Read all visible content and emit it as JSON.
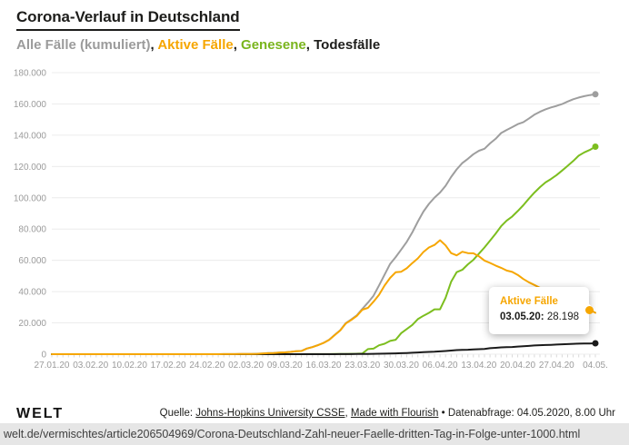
{
  "chart_data": {
    "type": "line",
    "title": "Corona-Verlauf in Deutschland",
    "legend_position": "subtitle",
    "legend_segments": [
      {
        "name": "alle-faelle",
        "text": "Alle Fälle (kumuliert)",
        "color": "#9b9b9b"
      },
      {
        "name": "sep1",
        "text": ", ",
        "color": "#1d1d1b"
      },
      {
        "name": "aktive-faelle",
        "text": "Aktive Fälle",
        "color": "#f6a600"
      },
      {
        "name": "sep2",
        "text": ", ",
        "color": "#1d1d1b"
      },
      {
        "name": "genesene",
        "text": "Genesene",
        "color": "#7ab51d"
      },
      {
        "name": "sep3",
        "text": ", ",
        "color": "#1d1d1b"
      },
      {
        "name": "todesfaelle",
        "text": "Todesfälle",
        "color": "#1d1d1b"
      }
    ],
    "x": {
      "start": "27.01.20",
      "end": "04.05.20",
      "interval": "daily"
    },
    "points": 99,
    "x_tick_labels": [
      "27.01.20",
      "03.02.20",
      "10.02.20",
      "17.02.20",
      "24.02.20",
      "02.03.20",
      "09.03.20",
      "16.03.20",
      "23.03.20",
      "30.03.20",
      "06.04.20",
      "13.04.20",
      "20.04.20",
      "27.04.20",
      "04.05."
    ],
    "x_tick_every_days": 7,
    "y_tick_labels": [
      "0",
      "20.000",
      "40.000",
      "60.000",
      "80.000",
      "100.000",
      "120.000",
      "140.000",
      "160.000",
      "180.000"
    ],
    "y_max": 180000,
    "grid": "horizontal",
    "draw_order": [
      0,
      2,
      3,
      1
    ],
    "series": [
      {
        "name": "Alle Fälle (kumuliert)",
        "color": "#9e9e9e",
        "end_dot_index": 98,
        "values": [
          1,
          4,
          4,
          4,
          5,
          8,
          10,
          12,
          12,
          12,
          12,
          13,
          13,
          14,
          14,
          16,
          16,
          16,
          16,
          16,
          16,
          16,
          16,
          16,
          16,
          16,
          16,
          16,
          16,
          17,
          27,
          46,
          48,
          79,
          130,
          159,
          196,
          262,
          482,
          670,
          799,
          1040,
          1176,
          1457,
          1908,
          2078,
          3675,
          4585,
          5795,
          7272,
          9257,
          12327,
          15320,
          19848,
          22213,
          24873,
          29056,
          32986,
          37323,
          43938,
          50871,
          57695,
          62095,
          66885,
          71808,
          77872,
          84794,
          91159,
          96092,
          100123,
          103374,
          107663,
          113296,
          118181,
          122171,
          124908,
          127854,
          130072,
          131359,
          134753,
          137698,
          141397,
          143342,
          145184,
          147065,
          148291,
          150648,
          153129,
          154999,
          156513,
          157770,
          158758,
          159912,
          161539,
          163009,
          164077,
          164967,
          165664,
          166152
        ]
      },
      {
        "name": "Aktive Fälle",
        "color": "#f6a600",
        "end_dot_index": 97,
        "overlay_dot": true,
        "values": [
          1,
          4,
          4,
          4,
          5,
          8,
          10,
          12,
          12,
          12,
          11,
          12,
          12,
          13,
          13,
          15,
          15,
          4,
          4,
          4,
          4,
          4,
          2,
          2,
          2,
          2,
          0,
          0,
          0,
          1,
          11,
          30,
          32,
          63,
          114,
          143,
          180,
          246,
          466,
          654,
          783,
          1022,
          1156,
          1430,
          1880,
          2050,
          3622,
          4530,
          5738,
          7188,
          9148,
          12194,
          15161,
          19601,
          21896,
          24513,
          28480,
          29586,
          33570,
          37998,
          43871,
          48781,
          52351,
          52740,
          54933,
          58252,
          61247,
          65309,
          68248,
          69839,
          72864,
          69566,
          64647,
          63167,
          65491,
          64637,
          64532,
          62578,
          59865,
          58349,
          56646,
          55245,
          53483,
          52598,
          50703,
          48058,
          45969,
          44254,
          42439,
          40836,
          39794,
          38132,
          36198,
          34672,
          32886,
          30441,
          29155,
          28198,
          26459
        ]
      },
      {
        "name": "Genesene",
        "color": "#7cbe1f",
        "end_dot_index": 98,
        "values": [
          0,
          0,
          0,
          0,
          0,
          0,
          0,
          0,
          0,
          0,
          1,
          1,
          1,
          1,
          1,
          1,
          1,
          12,
          12,
          12,
          12,
          12,
          14,
          14,
          14,
          14,
          16,
          16,
          16,
          16,
          16,
          16,
          16,
          16,
          16,
          16,
          16,
          16,
          16,
          16,
          16,
          18,
          18,
          25,
          25,
          25,
          46,
          46,
          46,
          67,
          85,
          105,
          115,
          180,
          233,
          266,
          453,
          3243,
          3547,
          5673,
          6658,
          8481,
          9211,
          13500,
          16100,
          18700,
          22440,
          24575,
          26400,
          28700,
          28700,
          36081,
          46300,
          52407,
          53913,
          57400,
          60300,
          64300,
          68200,
          72600,
          77000,
          81800,
          85400,
          88000,
          91500,
          95200,
          99400,
          103300,
          106800,
          109800,
          112000,
          114500,
          117400,
          120400,
          123500,
          126900,
          129000,
          130600,
          132700
        ]
      },
      {
        "name": "Todesfälle",
        "color": "#1a1a1a",
        "end_dot_index": 98,
        "values": [
          0,
          0,
          0,
          0,
          0,
          0,
          0,
          0,
          0,
          0,
          0,
          0,
          0,
          0,
          0,
          0,
          0,
          0,
          0,
          0,
          0,
          0,
          0,
          0,
          0,
          0,
          0,
          0,
          0,
          0,
          0,
          0,
          0,
          0,
          0,
          0,
          0,
          0,
          0,
          0,
          0,
          0,
          2,
          2,
          3,
          3,
          7,
          9,
          11,
          17,
          24,
          28,
          44,
          67,
          84,
          94,
          123,
          157,
          206,
          267,
          342,
          433,
          533,
          645,
          775,
          920,
          1107,
          1275,
          1444,
          1584,
          1810,
          2016,
          2349,
          2607,
          2767,
          2871,
          3022,
          3194,
          3294,
          3804,
          4052,
          4352,
          4459,
          4586,
          4862,
          5033,
          5279,
          5575,
          5760,
          5877,
          5976,
          6126,
          6314,
          6467,
          6623,
          6736,
          6812,
          6866,
          6993
        ]
      }
    ],
    "tooltip": {
      "series_index": 1,
      "point_index": 97,
      "title": "Aktive Fälle",
      "date": "03.05.20:",
      "value": " 28.198"
    }
  },
  "footer": {
    "logo": "WELT",
    "prefix": "Quelle: ",
    "link1": "Johns-Hopkins University CSSE",
    "sep": ", ",
    "link2": "Made with Flourish",
    "suffix": " • Datenabfrage: 04.05.2020, 8.00 Uhr"
  },
  "url_bar": {
    "text": "welt.de/vermischtes/article206504969/Corona-Deutschland-Zahl-neuer-Faelle-dritten-Tag-in-Folge-unter-1000.html"
  }
}
